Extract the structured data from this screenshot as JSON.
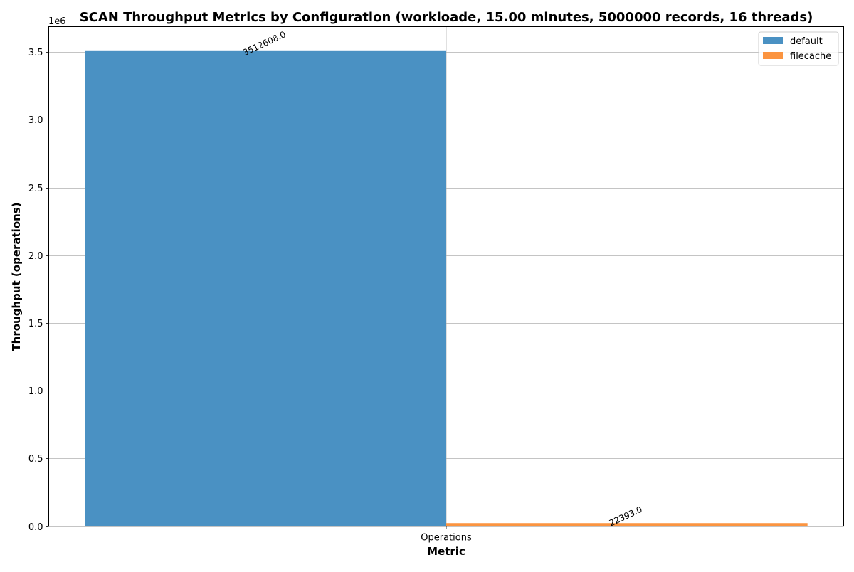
{
  "chart_data": {
    "type": "bar",
    "title": "SCAN Throughput Metrics by Configuration (workloade, 15.00 minutes, 5000000 records, 16 threads)",
    "xlabel": "Metric",
    "ylabel": "Throughput (operations)",
    "y_multiplier_label": "1e6",
    "categories": [
      "Operations"
    ],
    "series": [
      {
        "name": "default",
        "values": [
          3512608.0
        ],
        "color": "#4a91c3",
        "value_label": "3512608.0"
      },
      {
        "name": "filecache",
        "values": [
          22393.0
        ],
        "color": "#fb9440",
        "value_label": "22393.0"
      }
    ],
    "ylim": [
      0,
      3687524
    ],
    "yticks": [
      0,
      500000,
      1000000,
      1500000,
      2000000,
      2500000,
      3000000,
      3500000
    ],
    "ytick_labels": [
      "0.0",
      "0.5",
      "1.0",
      "1.5",
      "2.0",
      "2.5",
      "3.0",
      "3.5"
    ],
    "grid": true,
    "legend_position": "top-right"
  }
}
